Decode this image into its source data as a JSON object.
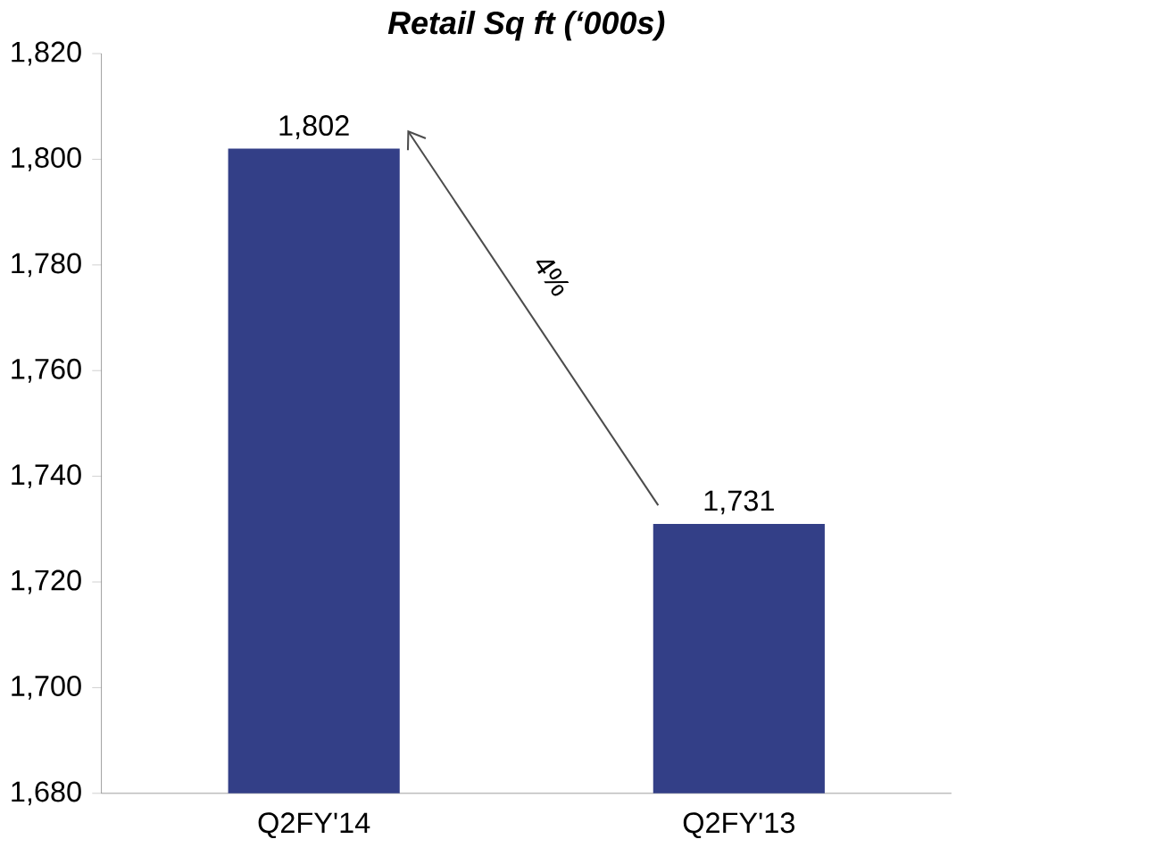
{
  "chart_data": {
    "type": "bar",
    "title": "Retail Sq ft (‘000s)",
    "categories": [
      "Q2FY'14",
      "Q2FY'13"
    ],
    "values": [
      1802,
      1731
    ],
    "color": "#333f87",
    "value_labels": [
      "1,802",
      "1,731"
    ],
    "annotations": [
      "4%"
    ],
    "ylim": [
      1680,
      1820
    ],
    "yticks": [
      {
        "value": 1680,
        "label": "1,680"
      },
      {
        "value": 1700,
        "label": "1,700"
      },
      {
        "value": 1720,
        "label": "1,720"
      },
      {
        "value": 1740,
        "label": "1,740"
      },
      {
        "value": 1760,
        "label": "1,760"
      },
      {
        "value": 1780,
        "label": "1,780"
      },
      {
        "value": 1800,
        "label": "1,800"
      },
      {
        "value": 1820,
        "label": "1,820"
      }
    ],
    "grid": false
  }
}
